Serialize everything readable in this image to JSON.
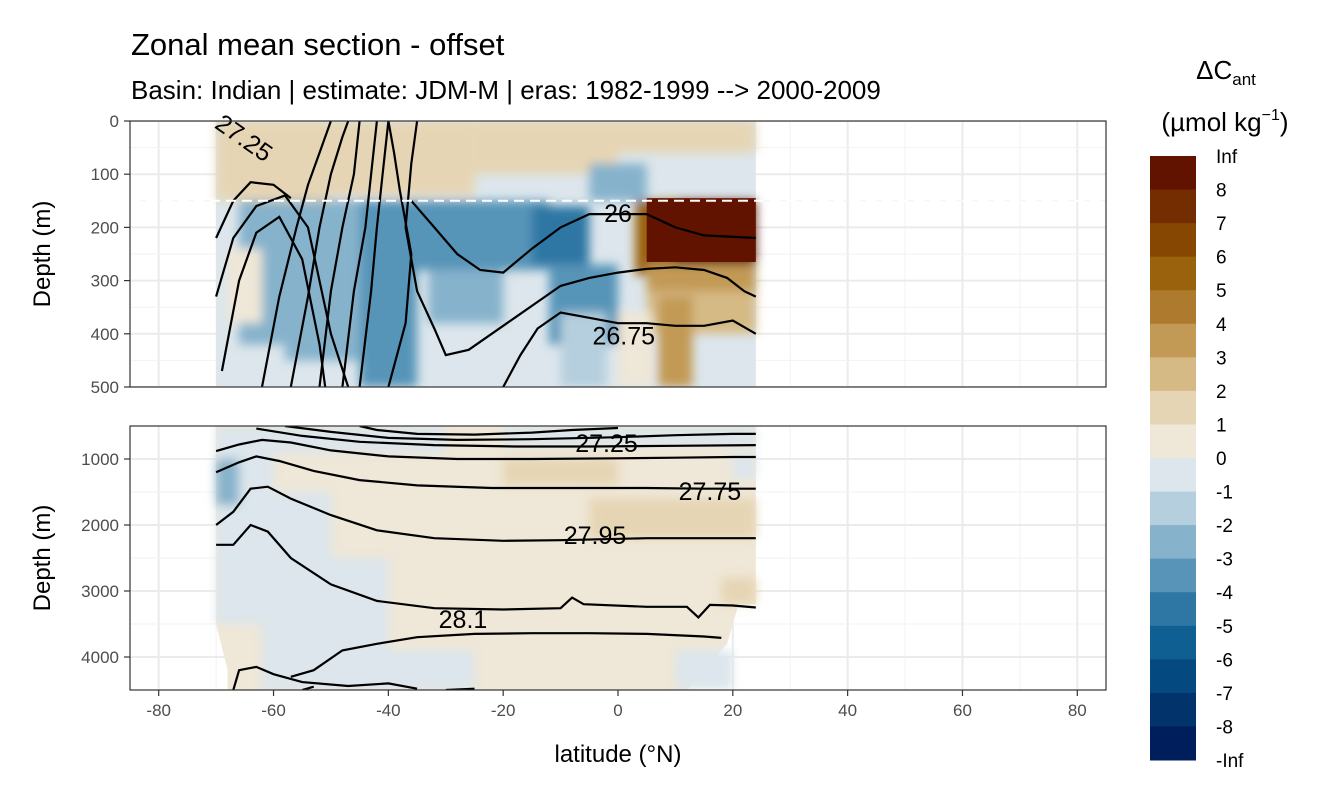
{
  "chart_data": {
    "type": "heatmap",
    "title": "Zonal mean section - offset",
    "subtitle": "Basin: Indian | estimate: JDM-M | eras: 1982-1999 --> 2000-2009",
    "xlabel": "latitude (°N)",
    "ylabel": "Depth (m)",
    "xlim": [
      -85,
      85
    ],
    "x_ticks": [
      "-80",
      "-60",
      "-40",
      "-20",
      "0",
      "20",
      "40",
      "60",
      "80"
    ],
    "x_tick_values": [
      -80,
      -60,
      -40,
      -20,
      0,
      20,
      40,
      60,
      80
    ],
    "data_lat_range": [
      -70,
      24
    ],
    "panels": [
      {
        "name": "upper",
        "ylim": [
          0,
          500
        ],
        "y_ticks": [
          "0",
          "100",
          "200",
          "300",
          "400",
          "500"
        ],
        "y_tick_values": [
          0,
          100,
          200,
          300,
          400,
          500
        ],
        "reference_line_depth": 150,
        "contour_labels": [
          {
            "text": "27.25",
            "lat": -66,
            "depth": 30
          },
          {
            "text": "26",
            "lat": 0,
            "depth": 175
          },
          {
            "text": "26.75",
            "lat": 1,
            "depth": 405
          }
        ]
      },
      {
        "name": "lower",
        "ylim": [
          500,
          4500
        ],
        "y_ticks": [
          "1000",
          "2000",
          "3000",
          "4000"
        ],
        "y_tick_values": [
          1000,
          2000,
          3000,
          4000
        ],
        "contour_labels": [
          {
            "text": "27.25",
            "lat": -2,
            "depth": 770
          },
          {
            "text": "27.75",
            "lat": 16,
            "depth": 1500
          },
          {
            "text": "27.95",
            "lat": -4,
            "depth": 2170
          },
          {
            "text": "28.1",
            "lat": -27,
            "depth": 3440
          }
        ]
      }
    ],
    "legend": {
      "title_main": "ΔC",
      "title_sub": "ant",
      "unit_main": "(µmol kg",
      "unit_sup": "−1",
      "unit_end": ")",
      "placement": "right",
      "labels": [
        "Inf",
        "8",
        "7",
        "6",
        "5",
        "4",
        "3",
        "2",
        "1",
        "0",
        "-1",
        "-2",
        "-3",
        "-4",
        "-5",
        "-6",
        "-7",
        "-8",
        "-Inf"
      ],
      "colors": [
        "#611300",
        "#732D01",
        "#864703",
        "#9A620C",
        "#AE7A2E",
        "#C29A55",
        "#D6BA85",
        "#E6D5B4",
        "#EFE7D7",
        "#DCE6EC",
        "#B5CFDE",
        "#86B2CC",
        "#5794B8",
        "#2E77A4",
        "#105F93",
        "#044A80",
        "#02336B",
        "#011E5C"
      ]
    },
    "grid": true
  }
}
